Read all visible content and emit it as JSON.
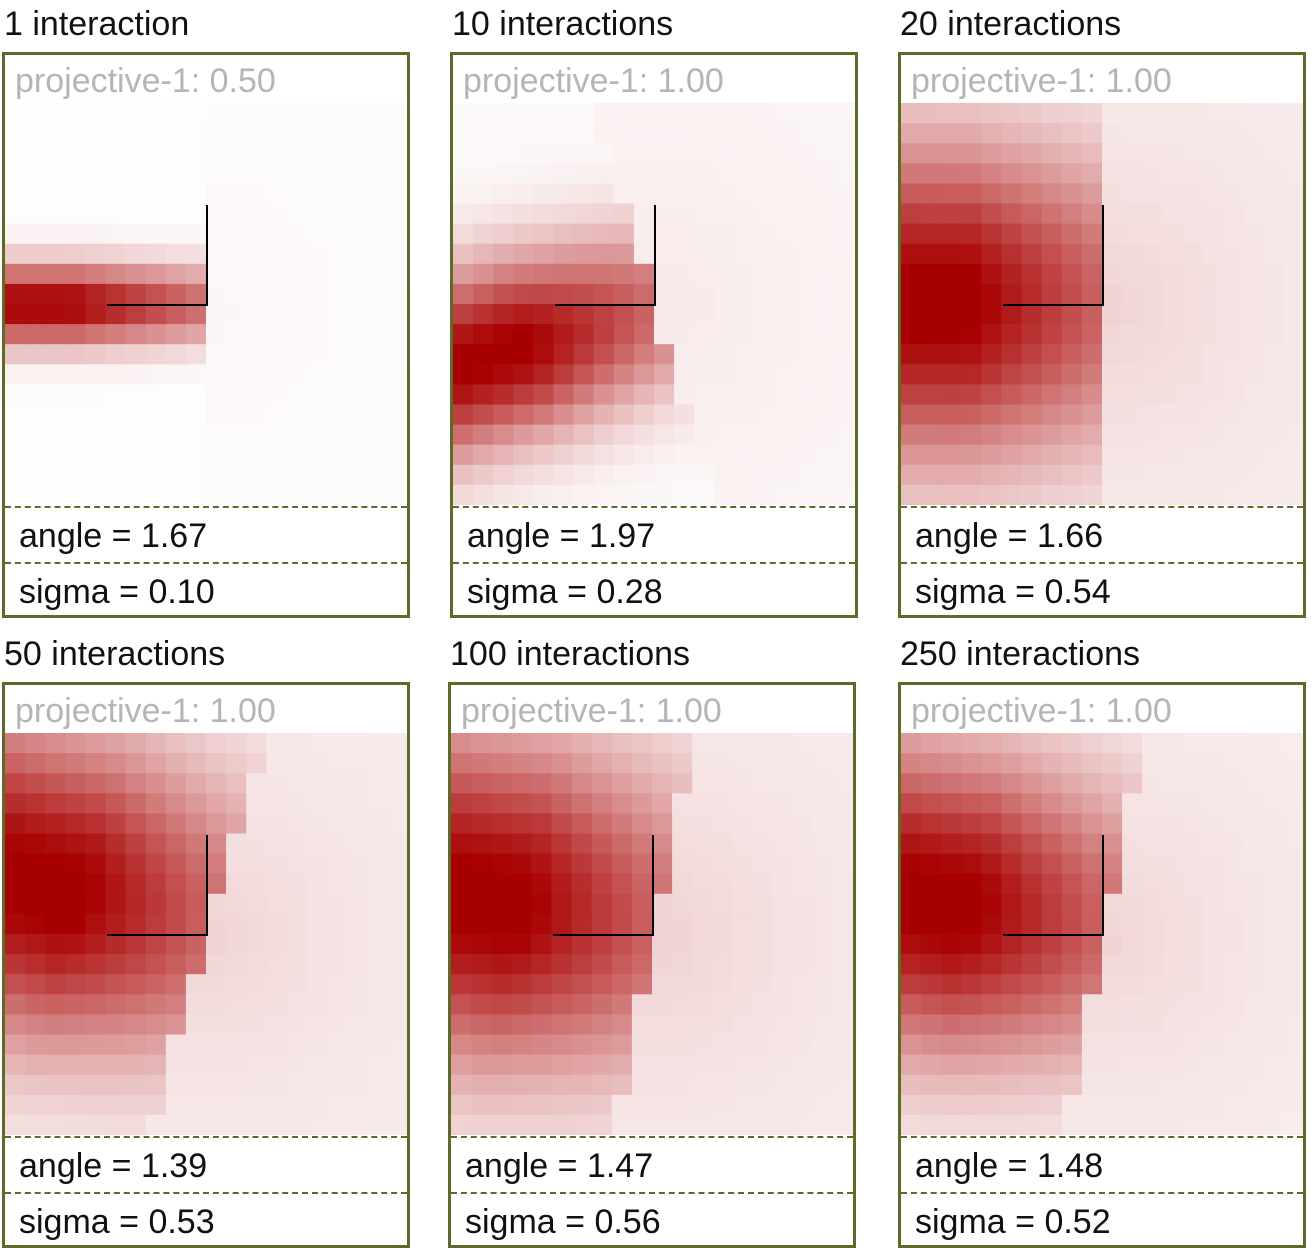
{
  "colors": {
    "frame": "#5d6a2a",
    "heat_base": "#a80000",
    "projective_text": "#b5b5b5",
    "axis_lines": "#000000"
  },
  "panels": [
    {
      "title": "1 interaction",
      "projective": "projective-1: 0.50",
      "angle": "angle = 1.67",
      "sigma": "sigma = 0.10",
      "angle_value": 1.67,
      "sigma_value": 0.1
    },
    {
      "title": "10 interactions",
      "projective": "projective-1: 1.00",
      "angle": "angle = 1.97",
      "sigma": "sigma = 0.28",
      "angle_value": 1.97,
      "sigma_value": 0.28
    },
    {
      "title": "20 interactions",
      "projective": "projective-1: 1.00",
      "angle": "angle = 1.66",
      "sigma": "sigma = 0.54",
      "angle_value": 1.66,
      "sigma_value": 0.54
    },
    {
      "title": "50 interactions",
      "projective": "projective-1: 1.00",
      "angle": "angle = 1.39",
      "sigma": "sigma = 0.53",
      "angle_value": 1.39,
      "sigma_value": 0.53
    },
    {
      "title": "100 interactions",
      "projective": "projective-1: 1.00",
      "angle": "angle = 1.47",
      "sigma": "sigma = 0.56",
      "angle_value": 1.47,
      "sigma_value": 0.56
    },
    {
      "title": "250 interactions",
      "projective": "projective-1: 1.00",
      "angle": "angle = 1.48",
      "sigma": "sigma = 0.52",
      "angle_value": 1.48,
      "sigma_value": 0.52
    }
  ]
}
